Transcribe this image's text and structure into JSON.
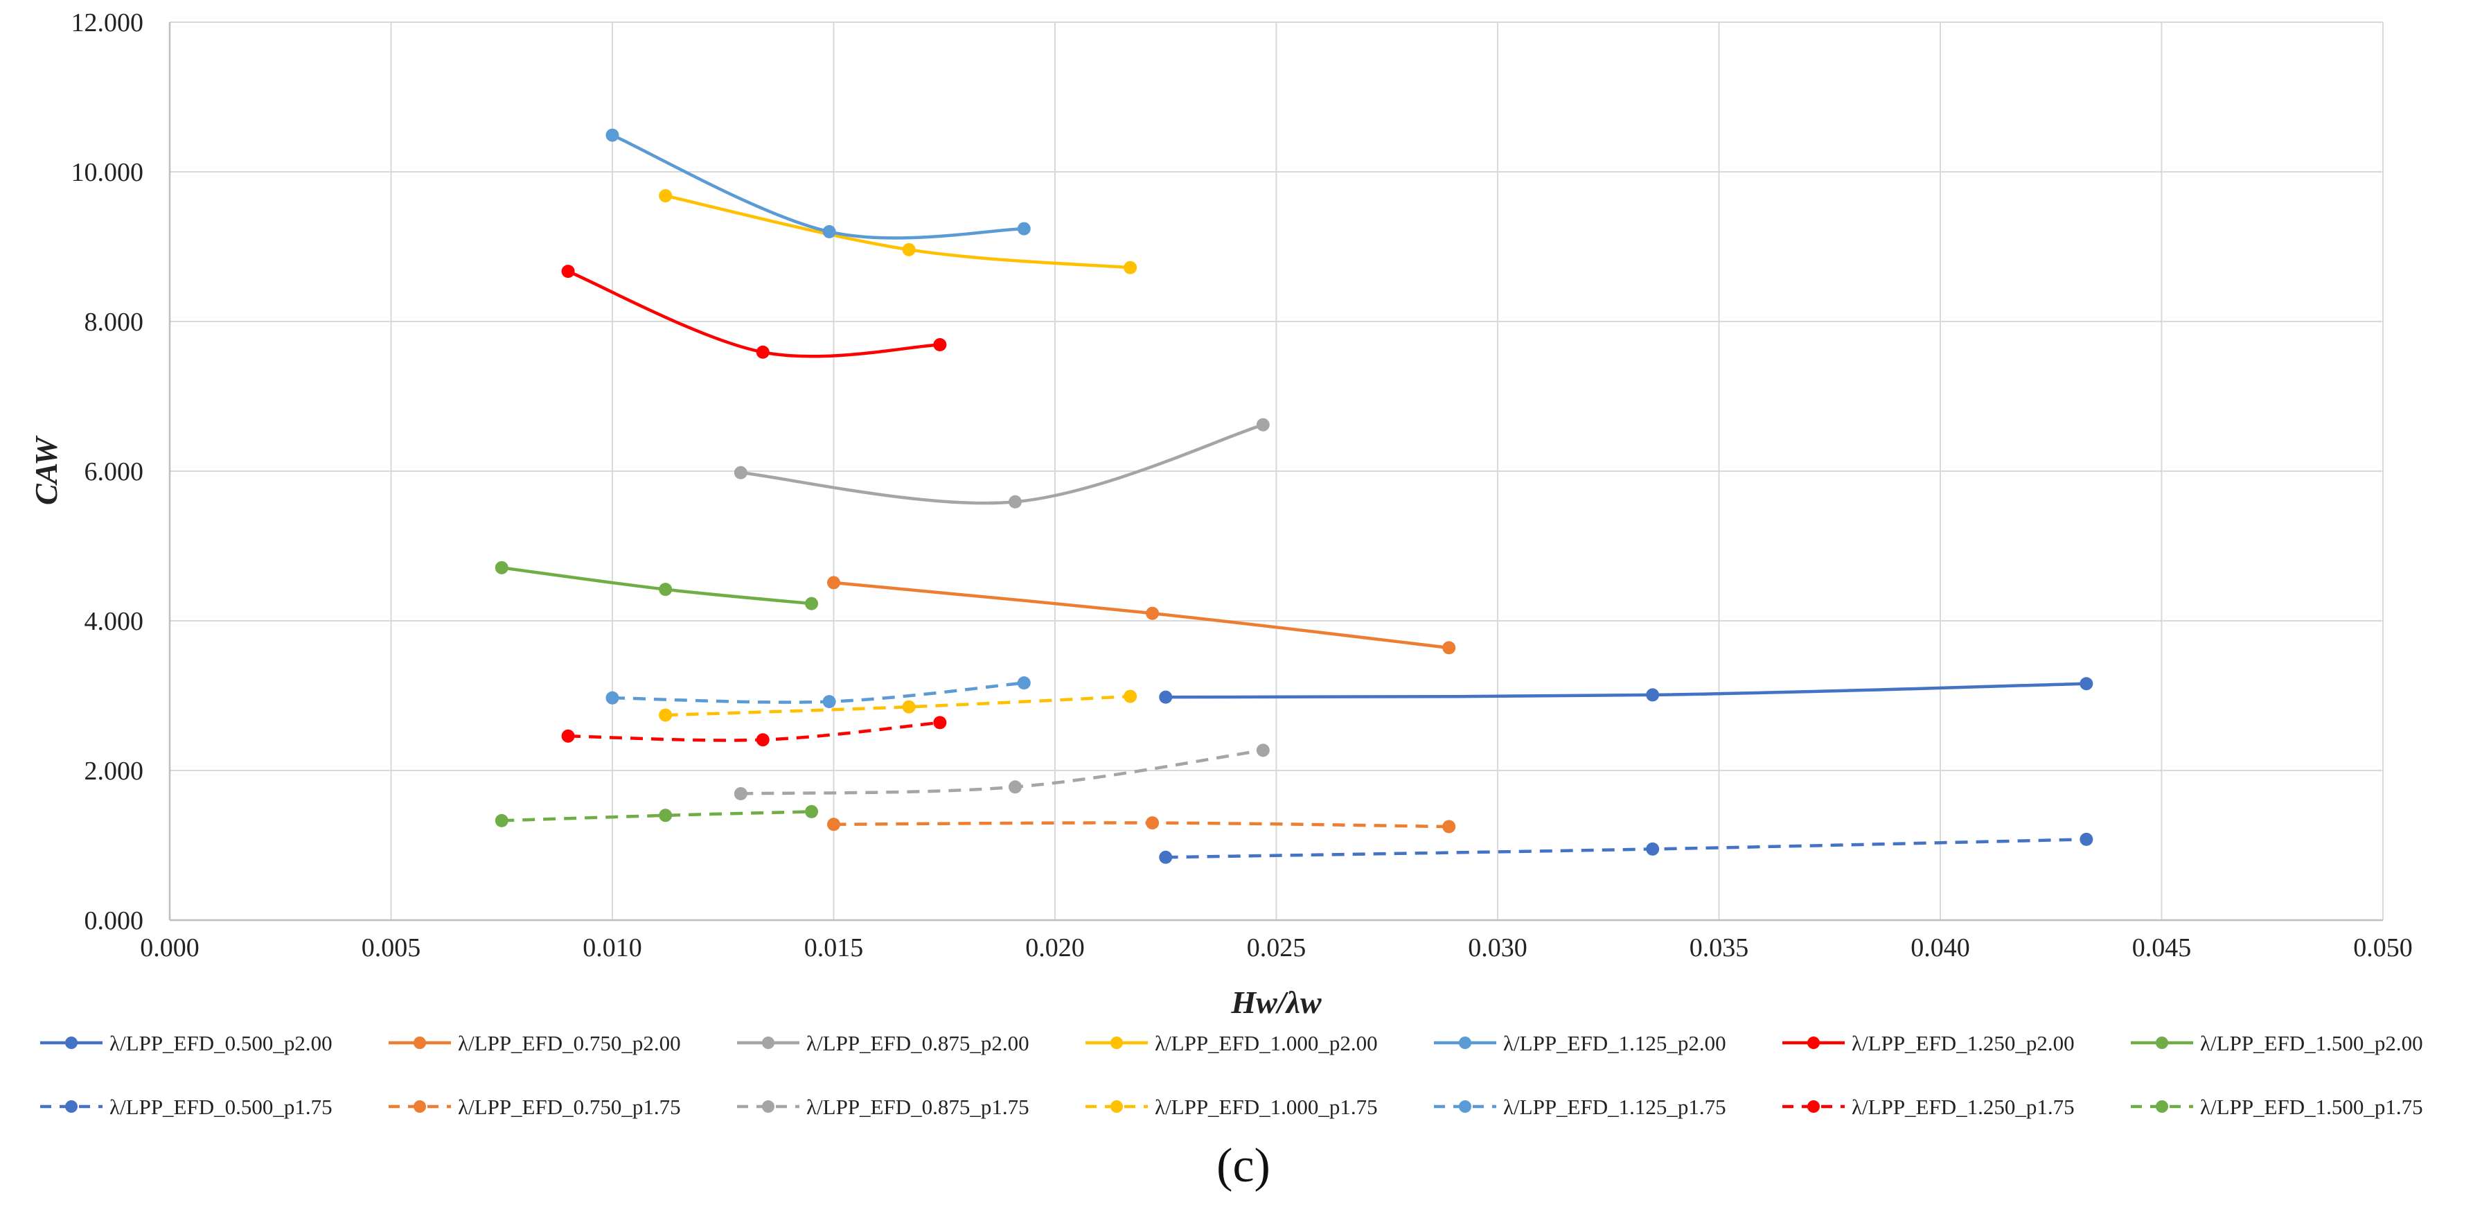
{
  "chart_data": {
    "type": "line",
    "caption": "(c)",
    "xlabel": "Hw/λw",
    "ylabel": "CAW",
    "xlim": [
      0.0,
      0.05
    ],
    "ylim": [
      0.0,
      12.0
    ],
    "x_ticks": [
      "0.000",
      "0.005",
      "0.010",
      "0.015",
      "0.020",
      "0.025",
      "0.030",
      "0.035",
      "0.040",
      "0.045",
      "0.050"
    ],
    "y_ticks": [
      "0.000",
      "2.000",
      "4.000",
      "6.000",
      "8.000",
      "10.000",
      "12.000"
    ],
    "grid": true,
    "legend_position": "bottom",
    "series": [
      {
        "name": "λ/LPP_EFD_0.500_p2.00",
        "color": "#4472C4",
        "dash": "solid",
        "x": [
          0.0225,
          0.0335,
          0.0433
        ],
        "y": [
          2.98,
          3.01,
          3.16
        ]
      },
      {
        "name": "λ/LPP_EFD_0.750_p2.00",
        "color": "#ED7D31",
        "dash": "solid",
        "x": [
          0.015,
          0.0222,
          0.0289
        ],
        "y": [
          4.51,
          4.1,
          3.64
        ]
      },
      {
        "name": "λ/LPP_EFD_0.875_p2.00",
        "color": "#A5A5A5",
        "dash": "solid",
        "x": [
          0.0129,
          0.0191,
          0.0247
        ],
        "y": [
          5.98,
          5.59,
          6.62
        ]
      },
      {
        "name": "λ/LPP_EFD_1.000_p2.00",
        "color": "#FFC000",
        "dash": "solid",
        "x": [
          0.0112,
          0.0167,
          0.0217
        ],
        "y": [
          9.68,
          8.96,
          8.72
        ]
      },
      {
        "name": "λ/LPP_EFD_1.125_p2.00",
        "color": "#5B9BD5",
        "dash": "solid",
        "x": [
          0.01,
          0.0149,
          0.0193
        ],
        "y": [
          10.49,
          9.2,
          9.24
        ]
      },
      {
        "name": "λ/LPP_EFD_1.250_p2.00",
        "color": "#FF0000",
        "dash": "solid",
        "x": [
          0.009,
          0.0134,
          0.0174
        ],
        "y": [
          8.67,
          7.59,
          7.69
        ]
      },
      {
        "name": "λ/LPP_EFD_1.500_p2.00",
        "color": "#70AD47",
        "dash": "solid",
        "x": [
          0.0075,
          0.0112,
          0.0145
        ],
        "y": [
          4.71,
          4.42,
          4.23
        ]
      },
      {
        "name": "λ/LPP_EFD_0.500_p1.75",
        "color": "#4472C4",
        "dash": "dashed",
        "x": [
          0.0225,
          0.0335,
          0.0433
        ],
        "y": [
          0.84,
          0.95,
          1.08
        ]
      },
      {
        "name": "λ/LPP_EFD_0.750_p1.75",
        "color": "#ED7D31",
        "dash": "dashed",
        "x": [
          0.015,
          0.0222,
          0.0289
        ],
        "y": [
          1.28,
          1.3,
          1.25
        ]
      },
      {
        "name": "λ/LPP_EFD_0.875_p1.75",
        "color": "#A5A5A5",
        "dash": "dashed",
        "x": [
          0.0129,
          0.0191,
          0.0247
        ],
        "y": [
          1.69,
          1.78,
          2.27
        ]
      },
      {
        "name": "λ/LPP_EFD_1.000_p1.75",
        "color": "#FFC000",
        "dash": "dashed",
        "x": [
          0.0112,
          0.0167,
          0.0217
        ],
        "y": [
          2.74,
          2.85,
          2.99
        ]
      },
      {
        "name": "λ/LPP_EFD_1.125_p1.75",
        "color": "#5B9BD5",
        "dash": "dashed",
        "x": [
          0.01,
          0.0149,
          0.0193
        ],
        "y": [
          2.97,
          2.92,
          3.17
        ]
      },
      {
        "name": "λ/LPP_EFD_1.250_p1.75",
        "color": "#FF0000",
        "dash": "dashed",
        "x": [
          0.009,
          0.0134,
          0.0174
        ],
        "y": [
          2.46,
          2.41,
          2.64
        ]
      },
      {
        "name": "λ/LPP_EFD_1.500_p1.75",
        "color": "#70AD47",
        "dash": "dashed",
        "x": [
          0.0075,
          0.0112,
          0.0145
        ],
        "y": [
          1.33,
          1.4,
          1.45
        ]
      }
    ]
  }
}
